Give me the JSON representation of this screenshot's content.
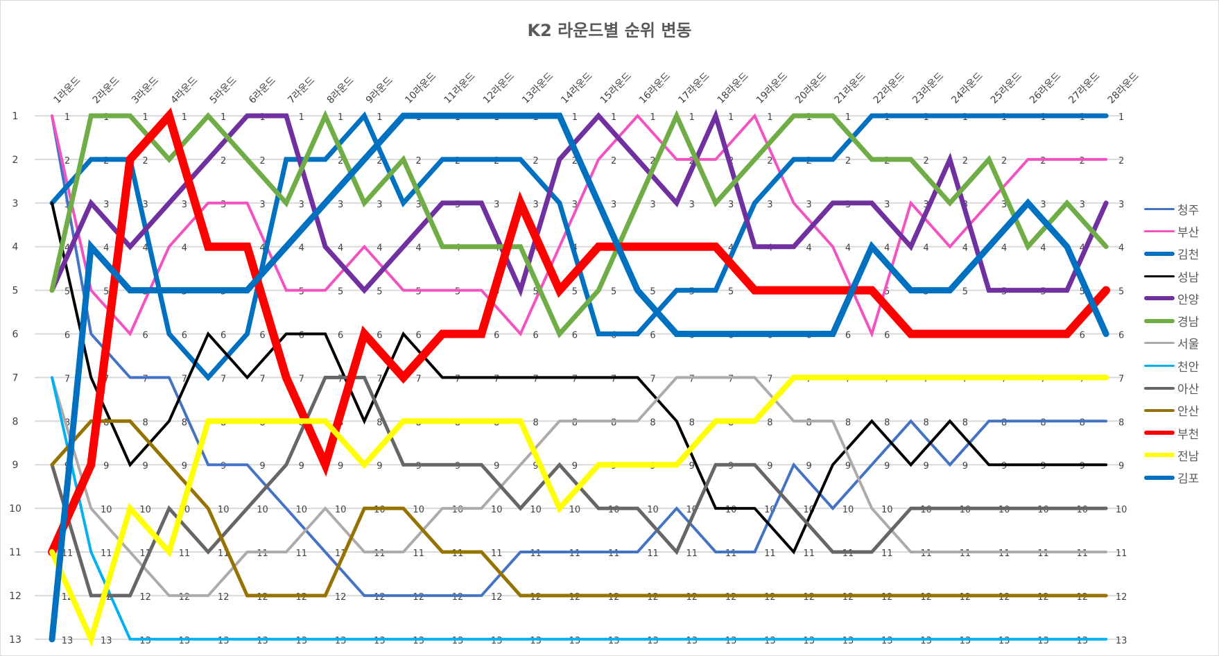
{
  "title": "K2 라운드별 순위 변동",
  "chart_data": {
    "type": "line",
    "title": "K2 라운드별 순위 변동",
    "xlabel": "",
    "ylabel": "",
    "ylim": [
      13,
      1
    ],
    "y_inverted": true,
    "grid": true,
    "legend_position": "right",
    "categories": [
      "1라운드",
      "2라운드",
      "3라운드",
      "4라운드",
      "5라운드",
      "6라운드",
      "7라운드",
      "8라운드",
      "9라운드",
      "10라운드",
      "11라운드",
      "12라운드",
      "13라운드",
      "14라운드",
      "15라운드",
      "16라운드",
      "17라운드",
      "18라운드",
      "19라운드",
      "20라운드",
      "21라운드",
      "22라운드",
      "23라운드",
      "24라운드",
      "25라운드",
      "26라운드",
      "27라운드",
      "28라운드"
    ],
    "y_ticks": [
      1,
      2,
      3,
      4,
      5,
      6,
      7,
      8,
      9,
      10,
      11,
      12,
      13
    ],
    "series": [
      {
        "name": "청주",
        "color": "#4472C4",
        "width": 4,
        "values": [
          1,
          6,
          7,
          7,
          9,
          9,
          10,
          11,
          12,
          12,
          12,
          12,
          11,
          11,
          11,
          11,
          10,
          11,
          11,
          9,
          10,
          9,
          8,
          9,
          8,
          8,
          8,
          8
        ]
      },
      {
        "name": "부산",
        "color": "#F352C0",
        "width": 4,
        "values": [
          1,
          5,
          6,
          4,
          3,
          3,
          5,
          5,
          4,
          5,
          5,
          5,
          6,
          4,
          2,
          1,
          2,
          2,
          1,
          3,
          4,
          6,
          3,
          4,
          3,
          2,
          2,
          2
        ]
      },
      {
        "name": "김천",
        "color": "#0070C0",
        "width": 7,
        "values": [
          3,
          2,
          2,
          6,
          7,
          6,
          2,
          2,
          1,
          3,
          2,
          2,
          2,
          3,
          6,
          6,
          5,
          5,
          3,
          2,
          2,
          1,
          1,
          1,
          1,
          1,
          1,
          1
        ]
      },
      {
        "name": "성남",
        "color": "#000000",
        "width": 4,
        "values": [
          3,
          7,
          9,
          8,
          6,
          7,
          6,
          6,
          8,
          6,
          7,
          7,
          7,
          7,
          7,
          7,
          8,
          10,
          10,
          11,
          9,
          8,
          9,
          8,
          9,
          9,
          9,
          9
        ]
      },
      {
        "name": "안양",
        "color": "#7030A0",
        "width": 7,
        "values": [
          5,
          3,
          4,
          3,
          2,
          1,
          1,
          4,
          5,
          4,
          3,
          3,
          5,
          2,
          1,
          2,
          3,
          1,
          4,
          4,
          3,
          3,
          4,
          2,
          5,
          5,
          5,
          3
        ]
      },
      {
        "name": "경남",
        "color": "#70AD47",
        "width": 7,
        "values": [
          5,
          1,
          1,
          2,
          1,
          2,
          3,
          1,
          3,
          2,
          4,
          4,
          4,
          6,
          5,
          3,
          1,
          3,
          2,
          1,
          1,
          2,
          2,
          3,
          2,
          4,
          3,
          4
        ]
      },
      {
        "name": "서울",
        "color": "#AEAAAA",
        "width": 4,
        "values": [
          7,
          10,
          11,
          12,
          12,
          11,
          11,
          10,
          11,
          11,
          10,
          10,
          9,
          8,
          8,
          8,
          7,
          7,
          7,
          8,
          8,
          10,
          11,
          11,
          11,
          11,
          11,
          11
        ]
      },
      {
        "name": "천안",
        "color": "#00B0F0",
        "width": 4,
        "values": [
          7,
          11,
          13,
          13,
          13,
          13,
          13,
          13,
          13,
          13,
          13,
          13,
          13,
          13,
          13,
          13,
          13,
          13,
          13,
          13,
          13,
          13,
          13,
          13,
          13,
          13,
          13,
          13
        ]
      },
      {
        "name": "아산",
        "color": "#666666",
        "width": 5,
        "values": [
          9,
          12,
          12,
          10,
          11,
          10,
          9,
          7,
          7,
          9,
          9,
          9,
          10,
          9,
          10,
          10,
          11,
          9,
          9,
          10,
          11,
          11,
          10,
          10,
          10,
          10,
          10,
          10
        ]
      },
      {
        "name": "안산",
        "color": "#967200",
        "width": 5,
        "values": [
          9,
          8,
          8,
          9,
          10,
          12,
          12,
          12,
          10,
          10,
          11,
          11,
          12,
          12,
          12,
          12,
          12,
          12,
          12,
          12,
          12,
          12,
          12,
          12,
          12,
          12,
          12,
          12
        ]
      },
      {
        "name": "부천",
        "color": "#FF0000",
        "width": 12,
        "values": [
          11,
          9,
          2,
          1,
          4,
          4,
          7,
          9,
          6,
          7,
          6,
          6,
          3,
          5,
          4,
          4,
          4,
          4,
          5,
          5,
          5,
          5,
          6,
          6,
          6,
          6,
          6,
          5
        ]
      },
      {
        "name": "전남",
        "color": "#FFFF00",
        "width": 8,
        "values": [
          11,
          13,
          10,
          11,
          8,
          8,
          8,
          8,
          9,
          8,
          8,
          8,
          8,
          10,
          9,
          9,
          9,
          8,
          8,
          7,
          7,
          7,
          7,
          7,
          7,
          7,
          7,
          7
        ]
      },
      {
        "name": "김포",
        "color": "#0070C0",
        "width": 9,
        "values": [
          13,
          4,
          5,
          5,
          5,
          5,
          4,
          3,
          2,
          1,
          1,
          1,
          1,
          1,
          3,
          5,
          6,
          6,
          6,
          6,
          6,
          4,
          5,
          5,
          4,
          3,
          4,
          6
        ]
      }
    ]
  }
}
